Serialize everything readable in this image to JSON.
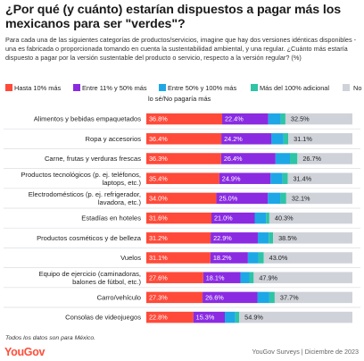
{
  "header": {
    "title": "¿Por qué (y cuánto) estarían dispuestos a pagar más los mexicanos para ser \"verdes\"?",
    "subtitle": "Para cada una de las siguientes categorías de productos/servicios, imagine que hay dos versiones idénticas disponibles - una es fabricada o proporcionada tomando en cuenta la sustentabilidad ambiental, y una regular. ¿Cuánto más estaría dispuesto a pagar por la versión sustentable del producto o servicio, respecto a la versión regular? (%)"
  },
  "legend": [
    {
      "label": "Hasta 10% más",
      "color": "#ff4a3a"
    },
    {
      "label": "Entre 11% y 50% más",
      "color": "#8a2be2"
    },
    {
      "label": "Entre 50% y 100% más",
      "color": "#1ea7e6"
    },
    {
      "label": "Más del 100% adicional",
      "color": "#2ec4a6"
    },
    {
      "label": "No lo sé/No pagaría más",
      "color": "#cfd2d9"
    }
  ],
  "chart_data": {
    "type": "bar",
    "orientation": "horizontal",
    "stacked": true,
    "categories": [
      "Alimentos y bebidas empaquetados",
      "Ropa y accesorios",
      "Carne, frutas y verduras frescas",
      "Productos tecnológicos (p. ej. teléfonos, laptops, etc.)",
      "Electrodomésticos (p. ej. refrigerador, lavadora, etc.)",
      "Estadías en hoteles",
      "Productos cosméticos y de belleza",
      "Vuelos",
      "Equipo de ejercicio (caminadoras, balones de fútbol, etc.)",
      "Carro/vehículo",
      "Consolas de videojuegos"
    ],
    "category_lines": [
      [
        "Alimentos y bebidas empaquetados"
      ],
      [
        "Ropa y accesorios"
      ],
      [
        "Carne, frutas y verduras frescas"
      ],
      [
        "Productos tecnológicos (p. ej. teléfonos,",
        "laptops, etc.)"
      ],
      [
        "Electrodomésticos (p. ej. refrigerador,",
        "lavadora, etc.)"
      ],
      [
        "Estadías en hoteles"
      ],
      [
        "Productos cosméticos y de belleza"
      ],
      [
        "Vuelos"
      ],
      [
        "Equipo de ejercicio (caminadoras,",
        "balones de fútbol, etc.)"
      ],
      [
        "Carro/vehículo"
      ],
      [
        "Consolas de videojuegos"
      ]
    ],
    "series": [
      {
        "name": "Hasta 10% más",
        "values": [
          36.8,
          36.4,
          36.3,
          35.4,
          34.0,
          31.6,
          31.2,
          31.1,
          27.6,
          27.3,
          22.8
        ],
        "labels": [
          "36.8%",
          "36.4%",
          "36.3%",
          "35.4%",
          "34.0%",
          "31.6%",
          "31.2%",
          "31.1%",
          "27.6%",
          "27.3%",
          "22.8%"
        ]
      },
      {
        "name": "Entre 11% y 50% más",
        "values": [
          22.4,
          24.2,
          26.4,
          24.9,
          25.0,
          21.0,
          22.9,
          18.2,
          18.1,
          26.6,
          15.3
        ],
        "labels": [
          "22.4%",
          "24.2%",
          "26.4%",
          "24.9%",
          "25.0%",
          "21.0%",
          "22.9%",
          "18.2%",
          "18.1%",
          "26.6%",
          "15.3%"
        ]
      },
      {
        "name": "Entre 50% y 100% más",
        "values": [
          6.0,
          6.0,
          7.0,
          5.8,
          6.1,
          5.5,
          5.3,
          5.2,
          4.3,
          5.8,
          5.1
        ]
      },
      {
        "name": "Más del 100% adicional",
        "values": [
          2.3,
          2.3,
          3.6,
          2.5,
          2.8,
          1.6,
          2.1,
          2.5,
          2.1,
          2.6,
          1.9
        ]
      },
      {
        "name": "No lo sé/No pagaría más",
        "values": [
          32.5,
          31.1,
          26.7,
          31.4,
          32.1,
          40.3,
          38.5,
          43.0,
          47.9,
          37.7,
          54.9
        ],
        "labels": [
          "32.5%",
          "31.1%",
          "26.7%",
          "31.4%",
          "32.1%",
          "40.3%",
          "38.5%",
          "43.0%",
          "47.9%",
          "37.7%",
          "54.9%"
        ]
      }
    ],
    "xlim": [
      0,
      100
    ]
  },
  "footer": {
    "note": "Todos los datos son para México.",
    "brand": "YouGov",
    "source": "YouGov Surveys | Diciembre de 2023"
  }
}
